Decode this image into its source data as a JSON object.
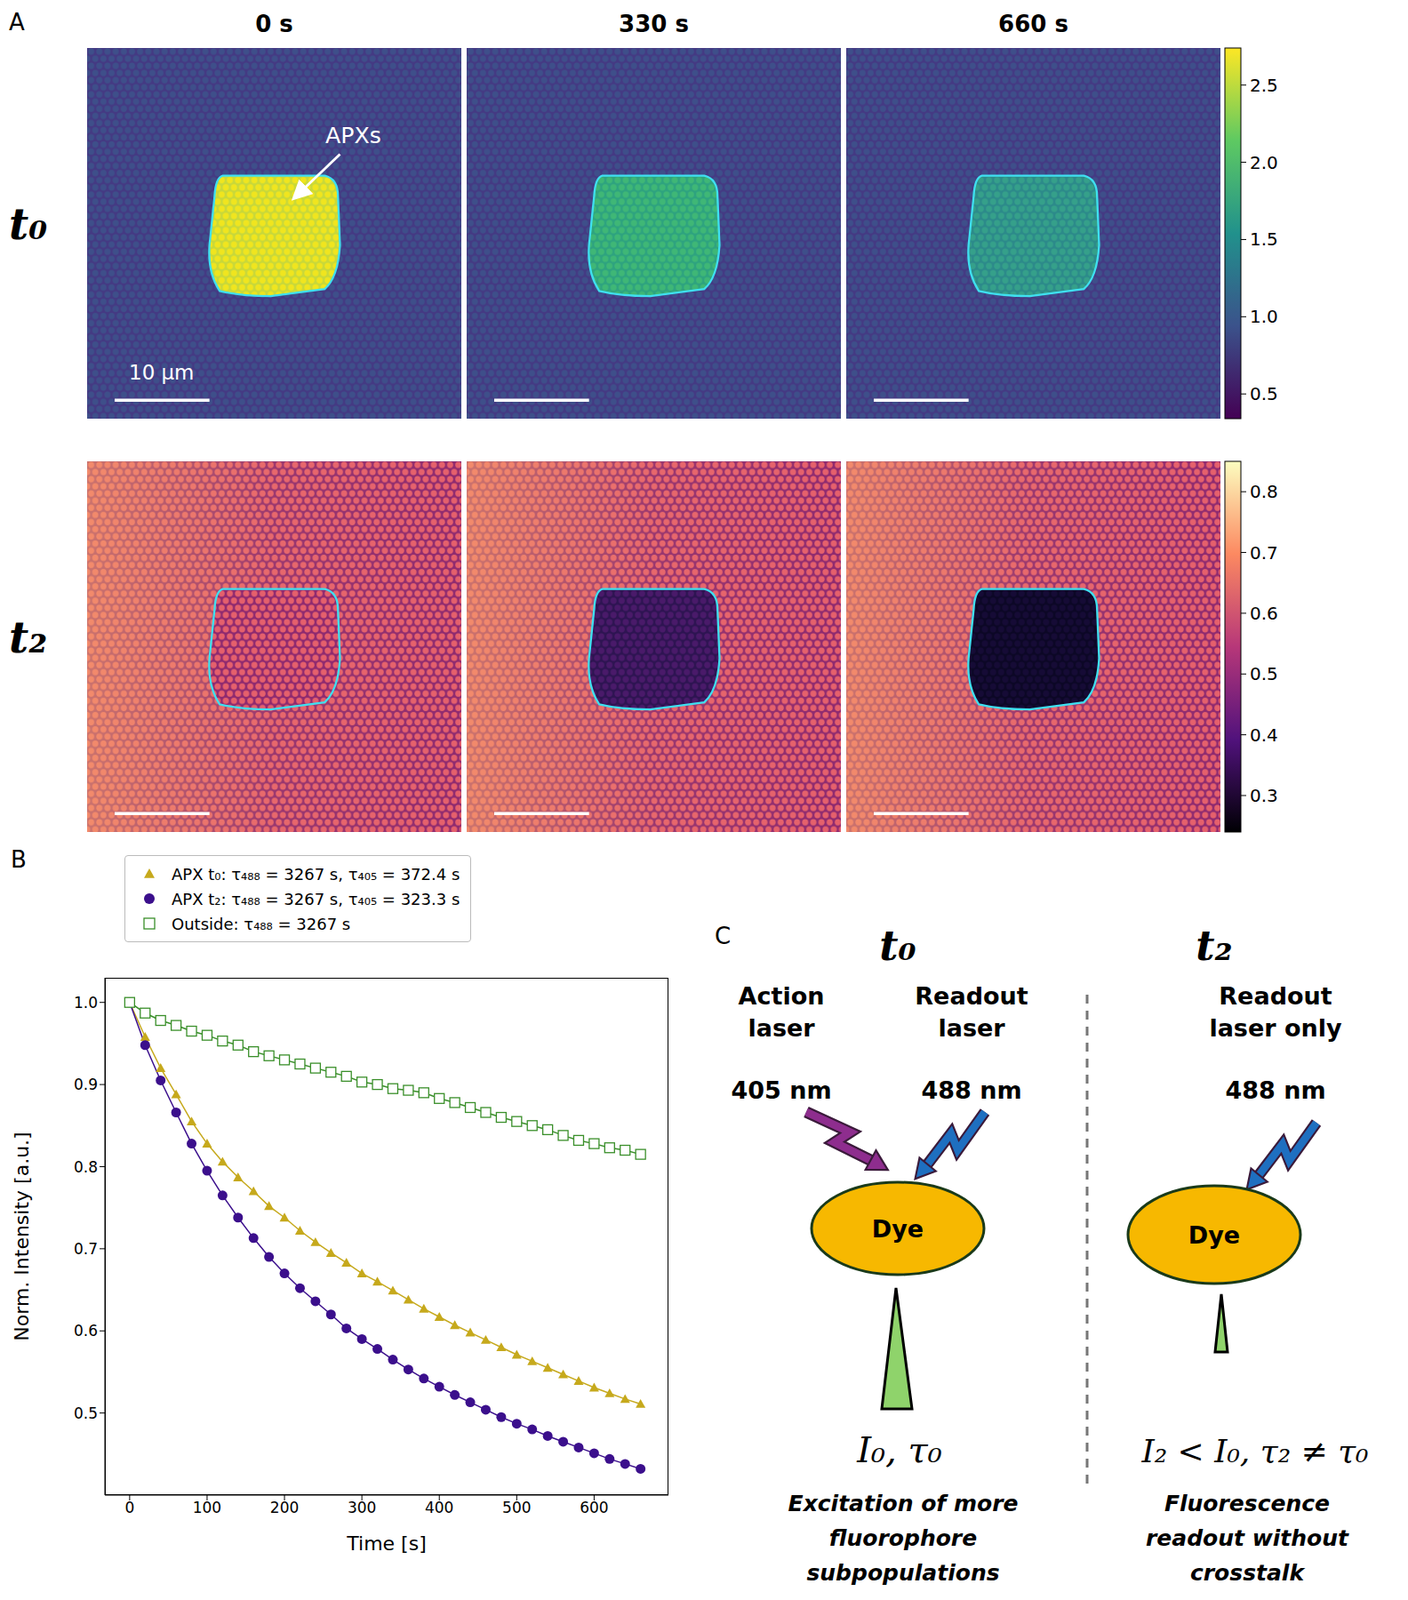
{
  "panel_labels": [
    "A",
    "B",
    "C"
  ],
  "panel_a": {
    "columns": [
      "0 s",
      "330 s",
      "660 s"
    ],
    "rows": [
      "t₀",
      "t₂"
    ],
    "annotation": "APXs",
    "scale_bar": "10 µm",
    "colorbars": [
      {
        "range": [
          0.34,
          2.74
        ],
        "ticks": [
          0.5,
          {
            "value": 1,
            "label": "1.0"
          },
          1.5,
          {
            "value": 2,
            "label": "2.0"
          },
          2.5
        ]
      },
      {
        "range": [
          0.24,
          0.85
        ],
        "ticks": [
          0.3,
          0.4,
          0.5,
          0.6,
          0.7,
          0.8
        ]
      }
    ]
  },
  "chart_data": {
    "type": "line",
    "x_label": "Time [s]",
    "y_label": "Norm. Intensity [a.u.]",
    "x": [
      0,
      20,
      40,
      60,
      80,
      100,
      120,
      140,
      160,
      180,
      200,
      220,
      240,
      260,
      280,
      300,
      320,
      340,
      360,
      380,
      400,
      420,
      440,
      460,
      480,
      500,
      520,
      540,
      560,
      580,
      600,
      620,
      640,
      660
    ],
    "series": [
      {
        "name": "APX t₀: τ₄₈₈ = 3267 s, τ₄₀₅ = 372.4 s",
        "color": "#c6a91c",
        "marker": "triangle",
        "values": [
          1.0,
          0.958,
          0.92,
          0.888,
          0.855,
          0.828,
          0.806,
          0.787,
          0.77,
          0.752,
          0.738,
          0.722,
          0.708,
          0.695,
          0.683,
          0.67,
          0.66,
          0.649,
          0.638,
          0.627,
          0.617,
          0.607,
          0.598,
          0.589,
          0.58,
          0.571,
          0.563,
          0.555,
          0.547,
          0.539,
          0.531,
          0.524,
          0.517,
          0.511
        ]
      },
      {
        "name": "APX t₂: τ₄₈₈ = 3267 s, τ₄₀₅ = 323.3 s",
        "color": "#3b0f8c",
        "marker": "circle",
        "values": [
          1.0,
          0.948,
          0.905,
          0.866,
          0.828,
          0.795,
          0.765,
          0.738,
          0.713,
          0.69,
          0.67,
          0.652,
          0.636,
          0.62,
          0.603,
          0.59,
          0.578,
          0.565,
          0.553,
          0.542,
          0.532,
          0.522,
          0.513,
          0.504,
          0.495,
          0.487,
          0.48,
          0.472,
          0.465,
          0.458,
          0.451,
          0.444,
          0.438,
          0.432
        ]
      },
      {
        "name": "Outside: τ₄₈₈ = 3267 s",
        "color": "#3a8f2a",
        "marker": "square_open",
        "values": [
          1.0,
          0.987,
          0.978,
          0.972,
          0.965,
          0.96,
          0.953,
          0.948,
          0.94,
          0.935,
          0.93,
          0.925,
          0.92,
          0.915,
          0.91,
          0.903,
          0.9,
          0.895,
          0.893,
          0.89,
          0.883,
          0.878,
          0.872,
          0.866,
          0.86,
          0.855,
          0.85,
          0.845,
          0.838,
          0.832,
          0.828,
          0.823,
          0.82,
          0.815
        ]
      }
    ],
    "xlim": [
      -32,
      696
    ],
    "xticks": [
      0,
      100,
      200,
      300,
      400,
      500,
      600
    ],
    "ylim": [
      0.4,
      1.03
    ],
    "yticks": [
      0.5,
      0.6,
      0.7,
      0.8,
      0.9,
      {
        "value": 1,
        "label": "1.0"
      }
    ],
    "legend": "top"
  },
  "panel_c": {
    "states": [
      {
        "title": "t₀",
        "lasers": [
          {
            "name": [
              "Action",
              "laser"
            ],
            "wavelength": "405 nm",
            "color": "#8e2d8e"
          },
          {
            "name": [
              "Readout",
              "laser"
            ],
            "wavelength": "488 nm",
            "color": "#1e6fc0"
          }
        ],
        "dye": "Dye",
        "result": "I₀,  τ₀",
        "caption": [
          "Excitation of more",
          "fluorophore",
          "subpopulations"
        ]
      },
      {
        "title": "t₂",
        "lasers": [
          {
            "name": [
              "Readout",
              "laser only"
            ],
            "wavelength": "488 nm",
            "color": "#1e6fc0"
          }
        ],
        "dye": "Dye",
        "result": "I₂ < I₀, τ₂ ≠ τ₀",
        "caption": [
          "Fluorescence",
          "readout without",
          "crosstalk"
        ]
      }
    ]
  }
}
